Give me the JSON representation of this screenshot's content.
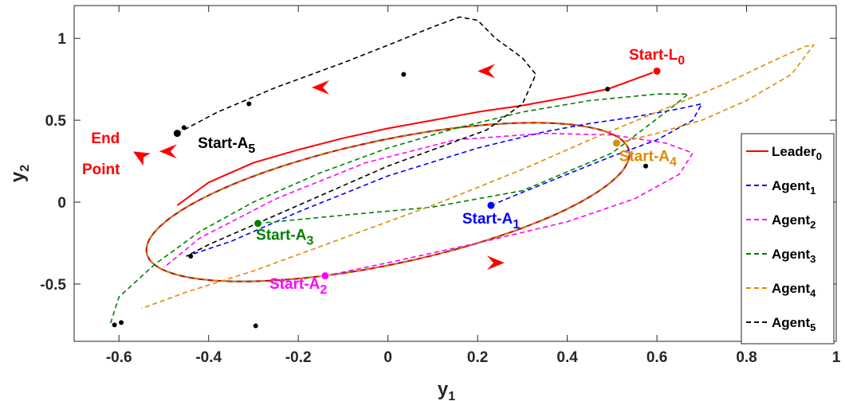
{
  "chart_data": {
    "type": "line",
    "title": "",
    "xlabel": {
      "main": "y",
      "sub": "1"
    },
    "ylabel": {
      "main": "y",
      "sub": "2"
    },
    "xlim": [
      -0.7,
      1.0
    ],
    "ylim": [
      -0.85,
      1.2
    ],
    "xticks": [
      -0.6,
      -0.4,
      -0.2,
      0,
      0.2,
      0.4,
      0.6,
      0.8,
      1
    ],
    "xtick_labels": [
      "-0.6",
      "-0.4",
      "-0.2",
      "0",
      "0.2",
      "0.4",
      "0.6",
      "0.8",
      "1"
    ],
    "yticks": [
      -0.5,
      0,
      0.5,
      1
    ],
    "ytick_labels": [
      "-0.5",
      "0",
      "0.5",
      "1"
    ],
    "grid": false,
    "legend_position": "right",
    "legend": [
      {
        "main": "Leader",
        "sub": "0",
        "color": "#ff0000",
        "dash": "solid"
      },
      {
        "main": "Agent",
        "sub": "1",
        "color": "#0000ff",
        "dash": "dashed"
      },
      {
        "main": "Agent",
        "sub": "2",
        "color": "#ff00ff",
        "dash": "dashed"
      },
      {
        "main": "Agent",
        "sub": "3",
        "color": "#008000",
        "dash": "dashed"
      },
      {
        "main": "Agent",
        "sub": "4",
        "color": "#e08a00",
        "dash": "dashed"
      },
      {
        "main": "Agent",
        "sub": "5",
        "color": "#000000",
        "dash": "dashed"
      }
    ],
    "series": [
      {
        "key": "leader",
        "color": "#ff0000",
        "dash": "solid",
        "x": [
          0.6,
          0.49,
          0.4,
          0.3,
          0.2,
          0.1,
          0.0,
          -0.1,
          -0.2,
          -0.3,
          -0.4,
          -0.47
        ],
        "y": [
          0.8,
          0.69,
          0.64,
          0.59,
          0.55,
          0.5,
          0.45,
          0.39,
          0.32,
          0.24,
          0.12,
          -0.02
        ]
      },
      {
        "key": "agent1",
        "color": "#0000ff",
        "dash": "dashed",
        "x": [
          0.23,
          0.3,
          0.4,
          0.5,
          0.6,
          0.68,
          0.7,
          0.65,
          0.55,
          0.45,
          0.35,
          0.2,
          0.0,
          -0.2,
          -0.35,
          -0.45
        ],
        "y": [
          -0.02,
          0.06,
          0.17,
          0.28,
          0.38,
          0.5,
          0.6,
          0.57,
          0.52,
          0.48,
          0.43,
          0.33,
          0.16,
          -0.06,
          -0.24,
          -0.33
        ]
      },
      {
        "key": "agent2",
        "color": "#ff00ff",
        "dash": "dashed",
        "x": [
          -0.14,
          0.0,
          0.2,
          0.4,
          0.55,
          0.65,
          0.68,
          0.62,
          0.5,
          0.35,
          0.15,
          -0.05,
          -0.25,
          -0.42,
          -0.5
        ],
        "y": [
          -0.45,
          -0.37,
          -0.25,
          -0.12,
          0.02,
          0.17,
          0.3,
          0.36,
          0.41,
          0.42,
          0.38,
          0.24,
          0.02,
          -0.22,
          -0.4
        ]
      },
      {
        "key": "agent3",
        "color": "#008000",
        "dash": "dashed",
        "x": [
          -0.29,
          -0.1,
          0.1,
          0.3,
          0.5,
          0.62,
          0.67,
          0.6,
          0.45,
          0.3,
          0.15,
          0.0,
          -0.15,
          -0.3,
          -0.42,
          -0.52,
          -0.6,
          -0.62
        ],
        "y": [
          -0.13,
          -0.08,
          -0.03,
          0.07,
          0.3,
          0.55,
          0.66,
          0.66,
          0.62,
          0.55,
          0.45,
          0.33,
          0.18,
          0.0,
          -0.18,
          -0.38,
          -0.58,
          -0.75
        ]
      },
      {
        "key": "agent4",
        "color": "#e08a00",
        "dash": "dashed",
        "x": [
          0.51,
          0.6,
          0.7,
          0.8,
          0.9,
          0.95,
          0.93,
          0.85,
          0.75,
          0.6,
          0.45,
          0.3,
          0.1,
          -0.1,
          -0.3,
          -0.45,
          -0.55
        ],
        "y": [
          0.36,
          0.42,
          0.5,
          0.62,
          0.78,
          0.96,
          0.95,
          0.85,
          0.72,
          0.55,
          0.38,
          0.2,
          -0.02,
          -0.22,
          -0.42,
          -0.55,
          -0.65
        ]
      },
      {
        "key": "agent5",
        "color": "#000000",
        "dash": "dashed",
        "x": [
          -0.47,
          -0.38,
          -0.25,
          -0.1,
          0.02,
          0.1,
          0.16,
          0.2,
          0.24,
          0.3,
          0.33,
          0.3,
          0.22,
          0.1,
          0.0,
          -0.1,
          -0.2,
          -0.3,
          -0.4,
          -0.45
        ],
        "y": [
          0.42,
          0.55,
          0.7,
          0.85,
          0.98,
          1.07,
          1.13,
          1.11,
          1.0,
          0.88,
          0.78,
          0.6,
          0.44,
          0.32,
          0.22,
          0.1,
          -0.02,
          -0.14,
          -0.26,
          -0.33
        ]
      }
    ],
    "limit_cycle": {
      "center": [
        0.0,
        0.0
      ],
      "a": 0.65,
      "b": 0.32,
      "angle_deg": 40,
      "color": "#000000",
      "overlay_dash": [
        "#ff0000",
        "#e08a00"
      ]
    },
    "cycle_points": [
      [
        0.035,
        0.78
      ],
      [
        0.49,
        0.69
      ],
      [
        0.575,
        0.22
      ],
      [
        -0.295,
        -0.755
      ],
      [
        -0.595,
        -0.735
      ],
      [
        -0.44,
        -0.33
      ],
      [
        -0.455,
        0.455
      ],
      [
        -0.31,
        0.6
      ],
      [
        -0.61,
        -0.75
      ]
    ],
    "cycle_arrows": [
      {
        "x": 0.2,
        "y": 0.8,
        "dir": "left"
      },
      {
        "x": -0.17,
        "y": 0.7,
        "dir": "left"
      },
      {
        "x": 0.26,
        "y": -0.37,
        "dir": "right"
      }
    ],
    "end_point": {
      "x": -0.55,
      "y": 0.28,
      "color": "#ff0000"
    },
    "end_arrows": [
      {
        "x": -0.51,
        "y": 0.31
      }
    ],
    "start_markers": [
      {
        "x": 0.6,
        "y": 0.8,
        "color": "#ff0000"
      },
      {
        "x": 0.23,
        "y": -0.02,
        "color": "#0000ff"
      },
      {
        "x": -0.14,
        "y": -0.45,
        "color": "#ff00ff"
      },
      {
        "x": -0.29,
        "y": -0.13,
        "color": "#008000"
      },
      {
        "x": 0.51,
        "y": 0.36,
        "color": "#e08a00"
      },
      {
        "x": -0.47,
        "y": 0.42,
        "color": "#000000"
      }
    ],
    "annotations": [
      {
        "main": "Start-L",
        "sub": "0",
        "x": 0.6,
        "y": 0.87,
        "color": "#ff0000"
      },
      {
        "main": "Start-A",
        "sub": "1",
        "x": 0.23,
        "y": -0.13,
        "color": "#0000ff"
      },
      {
        "main": "Start-A",
        "sub": "2",
        "x": -0.2,
        "y": -0.53,
        "color": "#ff00ff"
      },
      {
        "main": "Start-A",
        "sub": "3",
        "x": -0.23,
        "y": -0.23,
        "color": "#008000"
      },
      {
        "main": "Start-A",
        "sub": "4",
        "x": 0.58,
        "y": 0.25,
        "color": "#e08a00"
      },
      {
        "main": "Start-A",
        "sub": "5",
        "x": -0.36,
        "y": 0.33,
        "color": "#000000"
      },
      {
        "main": "End",
        "sub": "",
        "x": -0.63,
        "y": 0.36,
        "color": "#ff0000"
      },
      {
        "main": "Point",
        "sub": "",
        "x": -0.64,
        "y": 0.17,
        "color": "#ff0000"
      }
    ]
  }
}
